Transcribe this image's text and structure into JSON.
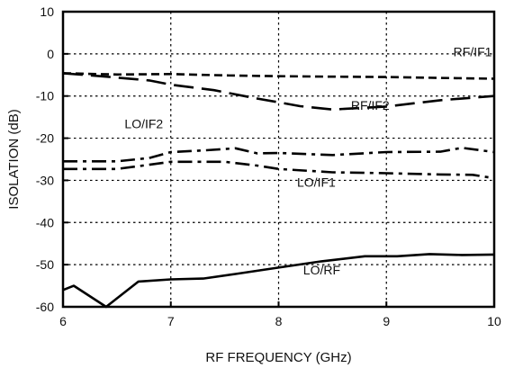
{
  "chart_data": {
    "type": "line",
    "xlabel": "RF FREQUENCY (GHz)",
    "ylabel": "ISOLATION  (dB)",
    "xlim": [
      6,
      10
    ],
    "ylim": [
      -60,
      10
    ],
    "xticks": [
      6,
      7,
      8,
      9,
      10
    ],
    "yticks": [
      10,
      0,
      -10,
      -20,
      -30,
      -40,
      -50,
      -60
    ],
    "grid": true,
    "series": [
      {
        "name": "RF/IF1",
        "dash": "short",
        "x": [
          6.0,
          6.5,
          7.0,
          7.5,
          8.0,
          8.5,
          9.0,
          9.5,
          10.0
        ],
        "y": [
          -4.6,
          -4.9,
          -4.8,
          -5.1,
          -5.3,
          -5.4,
          -5.5,
          -5.7,
          -5.9
        ]
      },
      {
        "name": "RF/IF2",
        "dash": "long",
        "x": [
          6.0,
          6.4,
          6.8,
          7.0,
          7.4,
          7.8,
          8.0,
          8.2,
          8.5,
          9.0,
          9.5,
          10.0
        ],
        "y": [
          -4.6,
          -5.4,
          -6.3,
          -7.3,
          -8.6,
          -10.6,
          -11.5,
          -12.4,
          -13.2,
          -12.5,
          -11.0,
          -10.0
        ]
      },
      {
        "name": "LO/IF2",
        "dash": "dash-dot",
        "x": [
          6.0,
          6.5,
          6.8,
          7.0,
          7.3,
          7.6,
          7.8,
          8.0,
          8.5,
          9.0,
          9.5,
          9.7,
          10.0
        ],
        "y": [
          -25.5,
          -25.5,
          -24.7,
          -23.3,
          -22.9,
          -22.4,
          -23.6,
          -23.5,
          -24.0,
          -23.3,
          -23.2,
          -22.3,
          -23.3
        ]
      },
      {
        "name": "LO/IF1",
        "dash": "dash-dot",
        "x": [
          6.0,
          6.5,
          6.8,
          7.0,
          7.5,
          7.8,
          8.0,
          8.5,
          9.0,
          9.5,
          9.8,
          10.0
        ],
        "y": [
          -27.3,
          -27.3,
          -26.3,
          -25.6,
          -25.6,
          -26.5,
          -27.3,
          -28.1,
          -28.3,
          -28.6,
          -28.7,
          -29.5
        ]
      },
      {
        "name": "LO/RF",
        "dash": "solid",
        "x": [
          6.0,
          6.1,
          6.4,
          6.7,
          7.0,
          7.3,
          7.6,
          8.0,
          8.4,
          8.8,
          9.1,
          9.4,
          9.7,
          10.0
        ],
        "y": [
          -56.0,
          -55.0,
          -60.0,
          -54.0,
          -53.5,
          -53.3,
          -52.2,
          -50.7,
          -49.2,
          -48.0,
          -48.0,
          -47.5,
          -47.7,
          -47.6
        ]
      }
    ],
    "labels": [
      {
        "text": "RF/IF1",
        "x": 9.8,
        "y": -0.6
      },
      {
        "text": "RF/IF2",
        "x": 8.85,
        "y": -13.3
      },
      {
        "text": "LO/IF2",
        "x": 6.75,
        "y": -17.6
      },
      {
        "text": "LO/IF1",
        "x": 8.35,
        "y": -31.5
      },
      {
        "text": "LO/RF",
        "x": 8.4,
        "y": -52.3
      }
    ]
  }
}
